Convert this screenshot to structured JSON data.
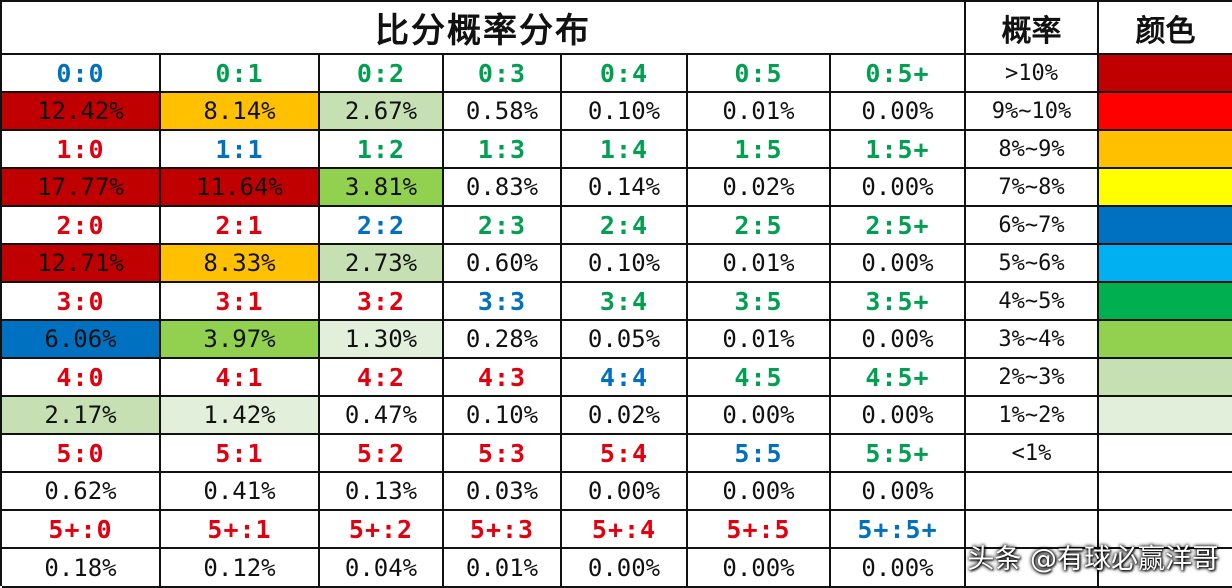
{
  "title": "比分概率分布",
  "legend_header": {
    "prob": "概率",
    "color": "颜色"
  },
  "colors": {
    "score_home_win": "#e3000e",
    "score_draw": "#0070c0",
    "score_away_win": "#00a050",
    "band_10plus": "#c00000",
    "band_9_10": "#ff0000",
    "band_8_9": "#ffc000",
    "band_7_8": "#ffff00",
    "band_6_7": "#0070c0",
    "band_5_6": "#00b0f0",
    "band_4_5": "#00b050",
    "band_3_4": "#92d050",
    "band_2_3": "#c6e0b4",
    "band_1_2": "#e2efda",
    "band_lt1": "#ffffff"
  },
  "rows": [
    {
      "scores": [
        "0:0",
        "0:1",
        "0:2",
        "0:3",
        "0:4",
        "0:5",
        "0:5+"
      ],
      "probs": [
        "12.42%",
        "8.14%",
        "2.67%",
        "0.58%",
        "0.10%",
        "0.01%",
        "0.00%"
      ]
    },
    {
      "scores": [
        "1:0",
        "1:1",
        "1:2",
        "1:3",
        "1:4",
        "1:5",
        "1:5+"
      ],
      "probs": [
        "17.77%",
        "11.64%",
        "3.81%",
        "0.83%",
        "0.14%",
        "0.02%",
        "0.00%"
      ]
    },
    {
      "scores": [
        "2:0",
        "2:1",
        "2:2",
        "2:3",
        "2:4",
        "2:5",
        "2:5+"
      ],
      "probs": [
        "12.71%",
        "8.33%",
        "2.73%",
        "0.60%",
        "0.10%",
        "0.01%",
        "0.00%"
      ]
    },
    {
      "scores": [
        "3:0",
        "3:1",
        "3:2",
        "3:3",
        "3:4",
        "3:5",
        "3:5+"
      ],
      "probs": [
        "6.06%",
        "3.97%",
        "1.30%",
        "0.28%",
        "0.05%",
        "0.01%",
        "0.00%"
      ]
    },
    {
      "scores": [
        "4:0",
        "4:1",
        "4:2",
        "4:3",
        "4:4",
        "4:5",
        "4:5+"
      ],
      "probs": [
        "2.17%",
        "1.42%",
        "0.47%",
        "0.10%",
        "0.02%",
        "0.00%",
        "0.00%"
      ]
    },
    {
      "scores": [
        "5:0",
        "5:1",
        "5:2",
        "5:3",
        "5:4",
        "5:5",
        "5:5+"
      ],
      "probs": [
        "0.62%",
        "0.41%",
        "0.13%",
        "0.03%",
        "0.00%",
        "0.00%",
        "0.00%"
      ]
    },
    {
      "scores": [
        "5+:0",
        "5+:1",
        "5+:2",
        "5+:3",
        "5+:4",
        "5+:5",
        "5+:5+"
      ],
      "probs": [
        "0.18%",
        "0.12%",
        "0.04%",
        "0.01%",
        "0.00%",
        "0.00%",
        "0.00%"
      ]
    }
  ],
  "legend": [
    {
      "label": ">10%",
      "color": "#c00000"
    },
    {
      "label": "9%~10%",
      "color": "#ff0000"
    },
    {
      "label": "8%~9%",
      "color": "#ffc000"
    },
    {
      "label": "7%~8%",
      "color": "#ffff00"
    },
    {
      "label": "6%~7%",
      "color": "#0070c0"
    },
    {
      "label": "5%~6%",
      "color": "#00b0f0"
    },
    {
      "label": "4%~5%",
      "color": "#00b050"
    },
    {
      "label": "3%~4%",
      "color": "#92d050"
    },
    {
      "label": "2%~3%",
      "color": "#c6e0b4"
    },
    {
      "label": "1%~2%",
      "color": "#e2efda"
    },
    {
      "label": "<1%",
      "color": "#ffffff"
    }
  ],
  "watermark": "头条 @有球必赢洋哥"
}
